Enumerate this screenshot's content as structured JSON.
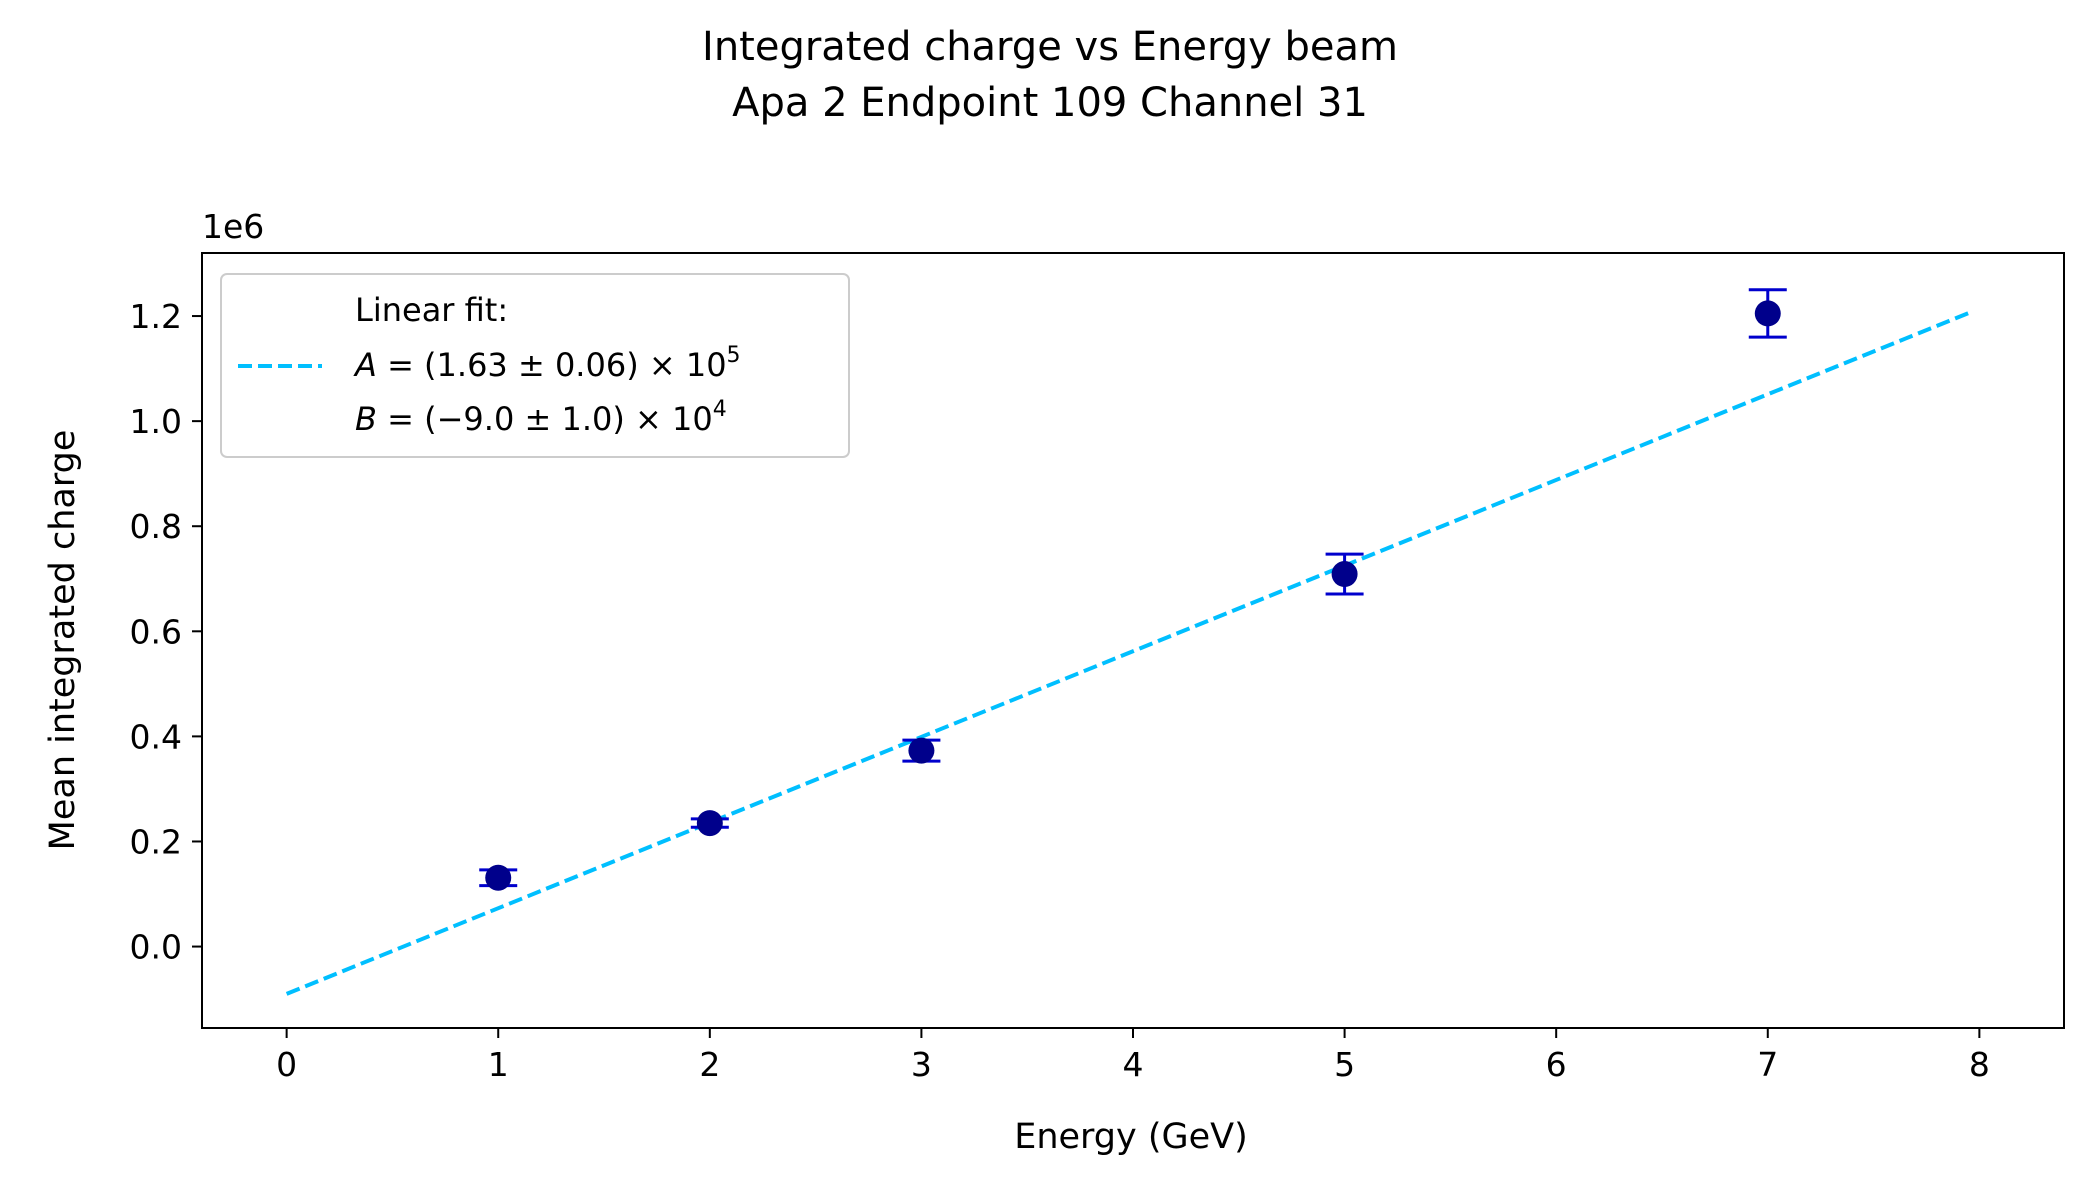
{
  "chart_data": {
    "type": "scatter",
    "title": "Integrated charge vs Energy beam",
    "subtitle": "Apa 2 Endpoint 109 Channel 31",
    "xlabel": "Energy (GeV)",
    "ylabel": "Mean integrated charge",
    "y_offset_text": "1e6",
    "xlim": [
      -0.4,
      8.4
    ],
    "ylim": [
      -0.155,
      1.32
    ],
    "xticks": [
      0,
      1,
      2,
      3,
      4,
      5,
      6,
      7,
      8
    ],
    "xtick_labels": [
      "0",
      "1",
      "2",
      "3",
      "4",
      "5",
      "6",
      "7",
      "8"
    ],
    "yticks": [
      0.0,
      0.2,
      0.4,
      0.6,
      0.8,
      1.0,
      1.2
    ],
    "ytick_labels": [
      "0.0",
      "0.2",
      "0.4",
      "0.6",
      "0.8",
      "1.0",
      "1.2"
    ],
    "grid": false,
    "legend_placement": "top-left",
    "series": [
      {
        "kind": "errorbar",
        "color": "#00008b",
        "errcolor": "#0000cd",
        "x": [
          1,
          2,
          3,
          5,
          7
        ],
        "y": [
          0.131,
          0.235,
          0.373,
          0.709,
          1.205
        ],
        "yerr": [
          0.015,
          0.008,
          0.02,
          0.038,
          0.045
        ]
      },
      {
        "kind": "line",
        "style": "dashed",
        "color": "#00bfff",
        "x": [
          0,
          7.95
        ],
        "y": [
          -0.09,
          1.2059
        ]
      }
    ],
    "legend": {
      "header": "Linear fit:",
      "line_a": {
        "sym": "A",
        "rest": " = (1.63 ± 0.06) × 10",
        "exp": "5"
      },
      "line_b": {
        "sym": "B",
        "rest": " = (−9.0 ± 1.0) × 10",
        "exp": "4"
      }
    }
  }
}
